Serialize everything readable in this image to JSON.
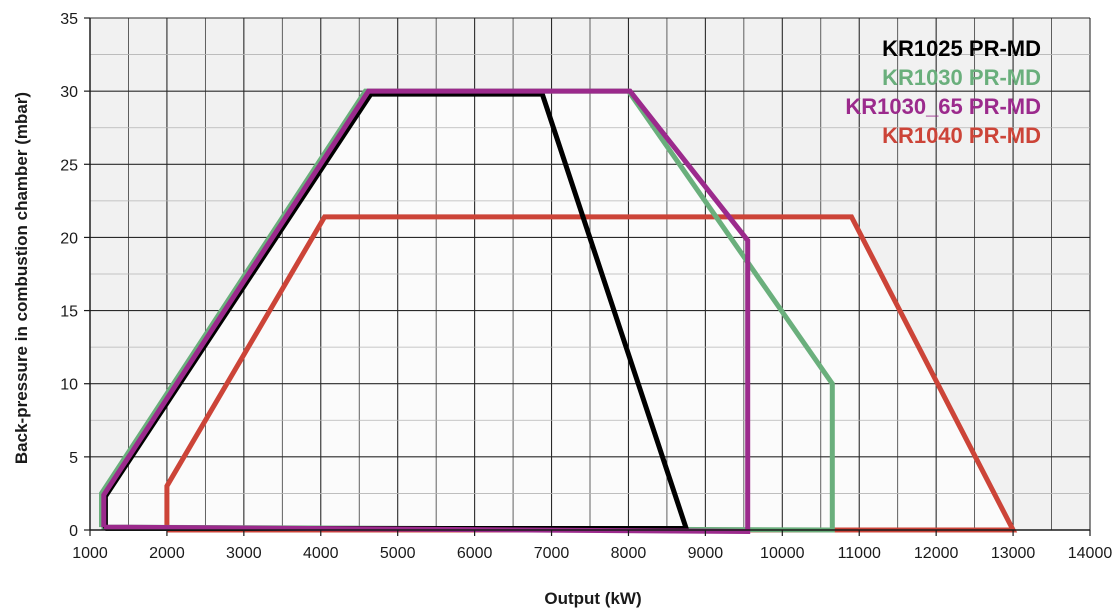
{
  "chart_data": {
    "type": "line",
    "title": "",
    "xlabel": "Output (kW)",
    "ylabel": "Back-pressure in combustion chamber (mbar)",
    "xlim": [
      1000,
      14000
    ],
    "ylim": [
      0,
      35
    ],
    "x_ticks": [
      1000,
      2000,
      3000,
      4000,
      5000,
      6000,
      7000,
      8000,
      9000,
      10000,
      11000,
      12000,
      13000,
      14000
    ],
    "y_ticks": [
      0,
      5,
      10,
      15,
      20,
      25,
      30,
      35
    ],
    "x_minor_step": 500,
    "y_minor_step": 2.5,
    "grid": true,
    "legend_position": "top-right",
    "series": [
      {
        "name": "KR1040 PR-MD",
        "color": "#cc4438",
        "points": [
          [
            2000,
            0
          ],
          [
            2000,
            3
          ],
          [
            4050,
            21.4
          ],
          [
            10900,
            21.4
          ],
          [
            13000,
            0
          ],
          [
            2000,
            0
          ]
        ]
      },
      {
        "name": "KR1030 PR-MD",
        "color": "#6aaf7c",
        "points": [
          [
            1150,
            0.2
          ],
          [
            1150,
            2.5
          ],
          [
            4580,
            30
          ],
          [
            8000,
            30
          ],
          [
            10650,
            10
          ],
          [
            10650,
            0
          ],
          [
            1150,
            0.2
          ]
        ]
      },
      {
        "name": "KR1025 PR-MD",
        "color": "#000000",
        "points": [
          [
            1200,
            0.1
          ],
          [
            1200,
            2.3
          ],
          [
            4650,
            29.8
          ],
          [
            6880,
            29.8
          ],
          [
            8750,
            0.1
          ],
          [
            1200,
            0.1
          ]
        ]
      },
      {
        "name": "KR1030_65 PR-MD",
        "color": "#9b2a8c",
        "points": [
          [
            1180,
            0.2
          ],
          [
            1180,
            2.4
          ],
          [
            4620,
            30
          ],
          [
            8020,
            30
          ],
          [
            9550,
            19.8
          ],
          [
            9550,
            -0.1
          ],
          [
            1180,
            0.2
          ]
        ]
      }
    ],
    "legend": [
      {
        "label": "KR1025 PR-MD",
        "color": "#000000"
      },
      {
        "label": "KR1030 PR-MD",
        "color": "#6aaf7c"
      },
      {
        "label": "KR1030_65 PR-MD",
        "color": "#9b2a8c"
      },
      {
        "label": "KR1040 PR-MD",
        "color": "#cc4438"
      }
    ]
  }
}
